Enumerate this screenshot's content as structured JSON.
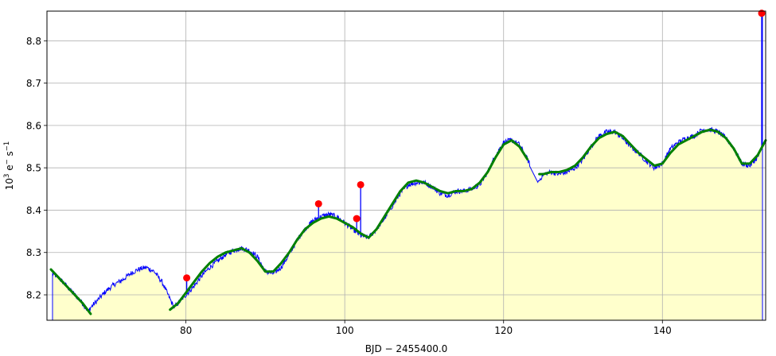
{
  "chart_data": {
    "type": "line",
    "title": "",
    "xlabel": "BJD − 2455400.0",
    "ylabel_base": "10",
    "ylabel_exp": "3",
    "ylabel_mid": " e",
    "ylabel_minus": "−",
    "ylabel_s": " s",
    "ylabel_exp2": "−1",
    "xlim": [
      62.5,
      153.0
    ],
    "ylim": [
      8.14,
      8.87
    ],
    "grid": true,
    "x_ticks": [
      80,
      100,
      120,
      140
    ],
    "x_tick_labels": [
      "80",
      "100",
      "120",
      "140"
    ],
    "y_ticks": [
      8.2,
      8.3,
      8.4,
      8.5,
      8.6,
      8.7,
      8.8
    ],
    "y_tick_labels": [
      "8.2",
      "8.3",
      "8.4",
      "8.5",
      "8.6",
      "8.7",
      "8.8"
    ],
    "colors": {
      "raw": "#0000ff",
      "model": "#008000",
      "outliers": "#ff0000",
      "fill": "#ffffcc",
      "grid": "#b0b0b0"
    },
    "series": [
      {
        "role": "raw",
        "x": [
          63.2,
          64.0,
          65.0,
          66.0,
          67.0,
          67.7,
          68.0,
          69.0,
          70.0,
          71.0,
          72.0,
          73.0,
          74.0,
          75.0,
          76.0,
          77.0,
          78.0,
          78.5,
          79.0,
          80.0,
          81.0,
          82.0,
          83.0,
          84.0,
          85.0,
          86.0,
          87.0,
          88.0,
          89.0,
          90.0,
          91.0,
          92.0,
          93.0,
          94.0,
          95.0,
          96.0,
          97.0,
          98.0,
          99.0,
          100.0,
          101.0,
          102.0,
          103.0,
          104.0,
          105.0,
          106.0,
          107.0,
          108.0,
          109.0,
          110.0,
          111.0,
          112.0,
          113.0,
          114.0,
          115.0,
          116.0,
          117.0,
          118.0,
          119.0,
          120.0,
          121.0,
          122.0,
          123.0,
          124.0,
          124.3,
          125.0,
          126.0,
          127.0,
          128.0,
          129.0,
          130.0,
          131.0,
          132.0,
          133.0,
          134.0,
          135.0,
          136.0,
          137.0,
          138.0,
          139.0,
          140.0,
          141.0,
          142.0,
          143.0,
          144.0,
          145.0,
          146.0,
          147.0,
          148.0,
          149.0,
          150.0,
          151.0,
          152.0,
          152.6
        ],
        "y": [
          8.25,
          8.24,
          8.22,
          8.2,
          8.18,
          8.16,
          8.17,
          8.19,
          8.21,
          8.225,
          8.235,
          8.25,
          8.26,
          8.265,
          8.255,
          8.23,
          8.19,
          8.17,
          8.18,
          8.2,
          8.22,
          8.245,
          8.265,
          8.28,
          8.295,
          8.305,
          8.31,
          8.305,
          8.29,
          8.255,
          8.25,
          8.265,
          8.295,
          8.33,
          8.355,
          8.375,
          8.385,
          8.39,
          8.385,
          8.37,
          8.355,
          8.34,
          8.335,
          8.355,
          8.38,
          8.41,
          8.44,
          8.46,
          8.465,
          8.465,
          8.455,
          8.44,
          8.435,
          8.445,
          8.445,
          8.45,
          8.46,
          8.49,
          8.53,
          8.56,
          8.565,
          8.555,
          8.52,
          8.48,
          8.465,
          8.485,
          8.49,
          8.485,
          8.49,
          8.5,
          8.52,
          8.55,
          8.575,
          8.585,
          8.585,
          8.57,
          8.55,
          8.535,
          8.515,
          8.5,
          8.51,
          8.545,
          8.56,
          8.57,
          8.575,
          8.59,
          8.59,
          8.585,
          8.57,
          8.545,
          8.51,
          8.505,
          8.525,
          8.55
        ]
      },
      {
        "role": "model",
        "x": [
          63.0,
          64.0,
          65.0,
          66.0,
          67.0,
          68.0,
          69.0,
          70.0,
          71.0,
          72.0,
          73.0,
          74.0,
          75.0,
          76.0,
          77.0,
          78.0,
          79.0,
          80.0,
          81.0,
          82.0,
          83.0,
          84.0,
          85.0,
          86.0,
          87.0,
          88.0,
          89.0,
          90.0,
          91.0,
          92.0,
          93.0,
          94.0,
          95.0,
          96.0,
          97.0,
          98.0,
          99.0,
          100.0,
          101.0,
          102.0,
          103.0,
          104.0,
          105.0,
          106.0,
          107.0,
          108.0,
          109.0,
          110.0,
          111.0,
          112.0,
          113.0,
          114.0,
          115.0,
          116.0,
          117.0,
          118.0,
          119.0,
          120.0,
          121.0,
          122.0,
          123.0,
          124.5,
          125.0,
          126.0,
          127.0,
          128.0,
          129.0,
          130.0,
          131.0,
          132.0,
          133.0,
          134.0,
          135.0,
          136.0,
          137.0,
          138.0,
          139.0,
          140.0,
          141.0,
          142.0,
          143.0,
          144.0,
          145.0,
          146.0,
          147.0,
          148.0,
          149.0,
          150.0,
          151.0,
          152.0,
          153.0
        ],
        "y": [
          8.26,
          8.24,
          8.22,
          8.2,
          8.18,
          8.155,
          8.19,
          8.205,
          8.22,
          8.235,
          8.25,
          8.26,
          8.265,
          8.255,
          8.225,
          8.165,
          8.18,
          8.205,
          8.23,
          8.255,
          8.275,
          8.29,
          8.3,
          8.305,
          8.31,
          8.3,
          8.28,
          8.255,
          8.255,
          8.275,
          8.3,
          8.33,
          8.355,
          8.37,
          8.38,
          8.385,
          8.38,
          8.37,
          8.36,
          8.345,
          8.335,
          8.355,
          8.385,
          8.415,
          8.445,
          8.465,
          8.47,
          8.465,
          8.455,
          8.445,
          8.44,
          8.445,
          8.445,
          8.45,
          8.465,
          8.49,
          8.525,
          8.555,
          8.565,
          8.55,
          8.52,
          8.485,
          8.485,
          8.49,
          8.49,
          8.495,
          8.505,
          8.525,
          8.55,
          8.57,
          8.58,
          8.585,
          8.575,
          8.555,
          8.535,
          8.52,
          8.505,
          8.51,
          8.535,
          8.555,
          8.565,
          8.575,
          8.585,
          8.59,
          8.585,
          8.57,
          8.545,
          8.51,
          8.51,
          8.53,
          8.565
        ]
      }
    ],
    "outliers": {
      "x": [
        80.1,
        96.7,
        101.5,
        102.0,
        152.5
      ],
      "y": [
        8.24,
        8.415,
        8.38,
        8.46,
        8.865
      ]
    },
    "noise_amplitude": 0.012
  }
}
